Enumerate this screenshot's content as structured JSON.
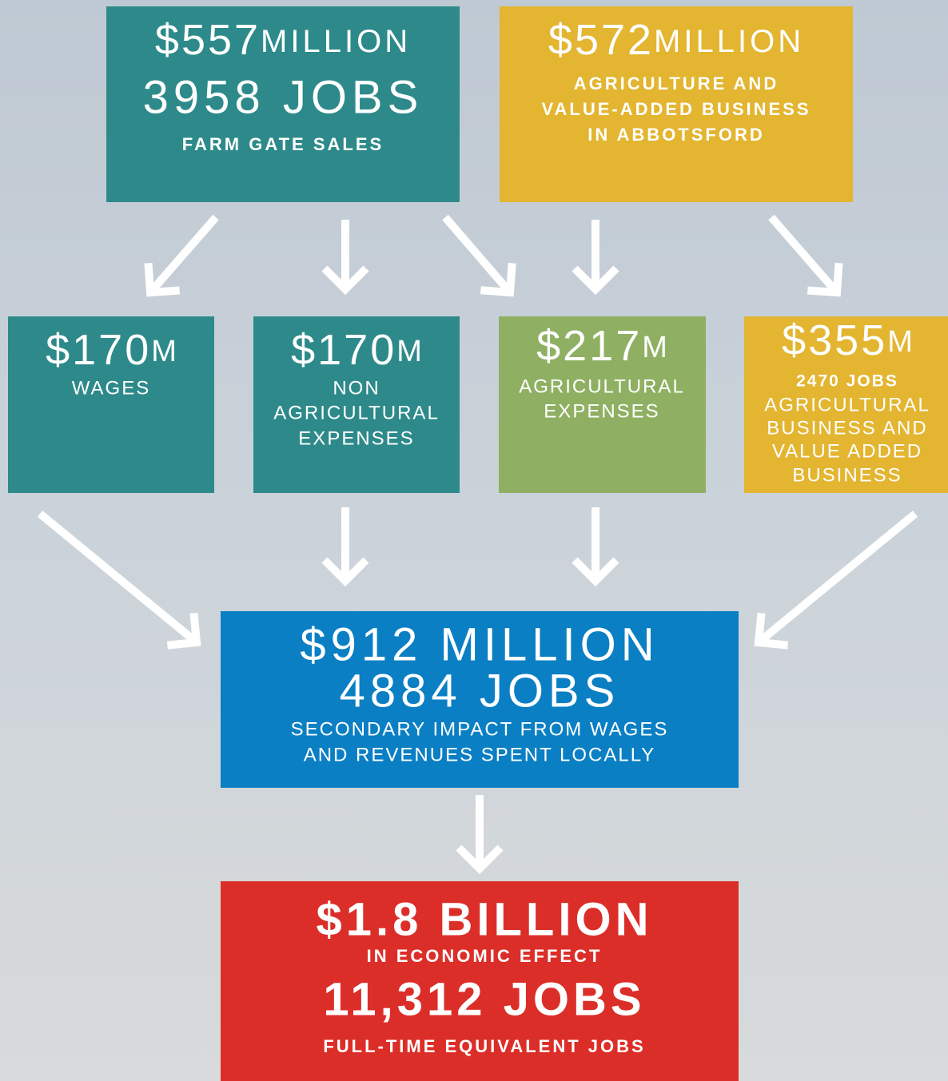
{
  "nodes": [
    {
      "amount": "$557",
      "unit": "MILLION",
      "lines": [
        "3958 JOBS",
        "FARM GATE SALES"
      ]
    },
    {
      "amount": "$572",
      "unit": "MILLION",
      "lines": [
        "AGRICULTURE AND",
        "VALUE-ADDED BUSINESS",
        "IN ABBOTSFORD"
      ]
    },
    {
      "amount": "$170",
      "unit": "M",
      "lines": [
        "WAGES"
      ]
    },
    {
      "amount": "$170",
      "unit": "M",
      "lines": [
        "NON",
        "AGRICULTURAL",
        "EXPENSES"
      ]
    },
    {
      "amount": "$217",
      "unit": "M",
      "lines": [
        "AGRICULTURAL",
        "EXPENSES"
      ]
    },
    {
      "amount": "$355",
      "unit": "M",
      "lines": [
        "2470 JOBS",
        "AGRICULTURAL",
        "BUSINESS AND",
        "VALUE ADDED",
        "BUSINESS"
      ]
    },
    {
      "lines": [
        "$912 MILLION",
        "4884 JOBS",
        "SECONDARY IMPACT FROM WAGES",
        "AND REVENUES SPENT LOCALLY"
      ]
    },
    {
      "lines": [
        "$1.8 BILLION",
        "IN ECONOMIC EFFECT",
        "11,312 JOBS",
        "FULL-TIME EQUIVALENT JOBS"
      ]
    }
  ]
}
